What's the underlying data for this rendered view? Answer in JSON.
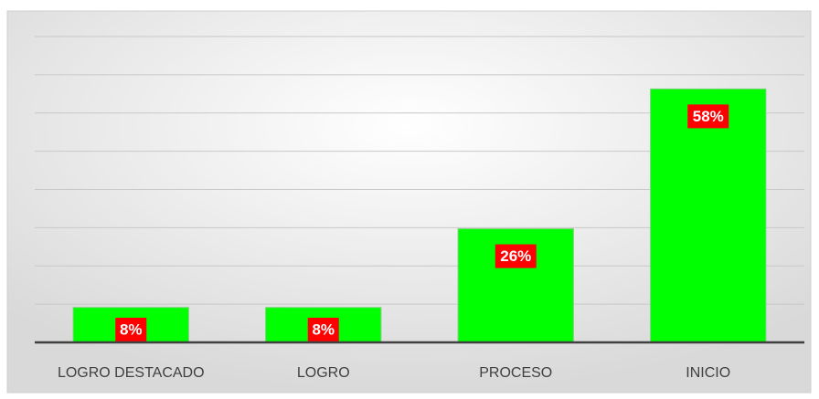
{
  "chart_data": {
    "type": "bar",
    "categories": [
      "LOGRO DESTACADO",
      "LOGRO",
      "PROCESO",
      "INICIO"
    ],
    "values": [
      8,
      8,
      26,
      58
    ],
    "value_labels": [
      "8%",
      "8%",
      "26%",
      "58%"
    ],
    "color": "#00ff00",
    "label_color": "#ff0000",
    "ylim": [
      0,
      70
    ],
    "yticks": [
      0,
      8.75,
      17.5,
      26.25,
      35,
      43.75,
      52.5,
      61.25,
      70
    ],
    "grid": true
  }
}
